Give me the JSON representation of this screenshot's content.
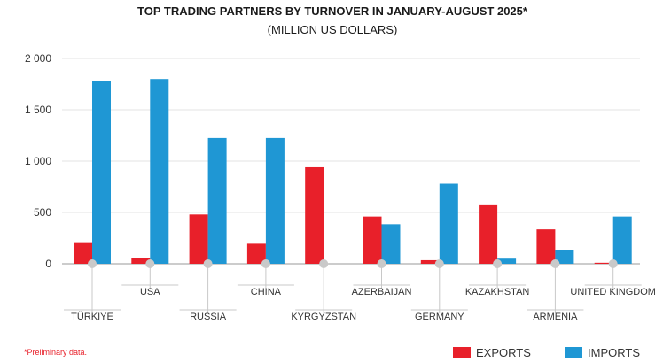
{
  "chart_data": {
    "type": "bar",
    "title": "TOP TRADING PARTNERS BY TURNOVER IN JANUARY-AUGUST 2025*",
    "subtitle": "(MILLION US DOLLARS)",
    "categories": [
      "TÜRKIYE",
      "USA",
      "RUSSIA",
      "CHINA",
      "KYRGYZSTAN",
      "AZERBAIJAN",
      "GERMANY",
      "KAZAKHSTAN",
      "ARMENIA",
      "UNITED KINGDOM"
    ],
    "series": [
      {
        "name": "EXPORTS",
        "color": "#e8202a",
        "values": [
          210,
          60,
          480,
          195,
          940,
          460,
          35,
          570,
          335,
          10
        ]
      },
      {
        "name": "IMPORTS",
        "color": "#1f97d4",
        "values": [
          1780,
          1800,
          1225,
          1225,
          0,
          385,
          780,
          50,
          135,
          460
        ]
      }
    ],
    "ylim": [
      0,
      2000
    ],
    "yticks": [
      0,
      500,
      1000,
      1500,
      2000
    ],
    "ytick_labels": [
      "0",
      "500",
      "1 000",
      "1 500",
      "2 000"
    ],
    "grid": true,
    "legend_position": "bottom-right",
    "footnote": "*Preliminary data."
  }
}
